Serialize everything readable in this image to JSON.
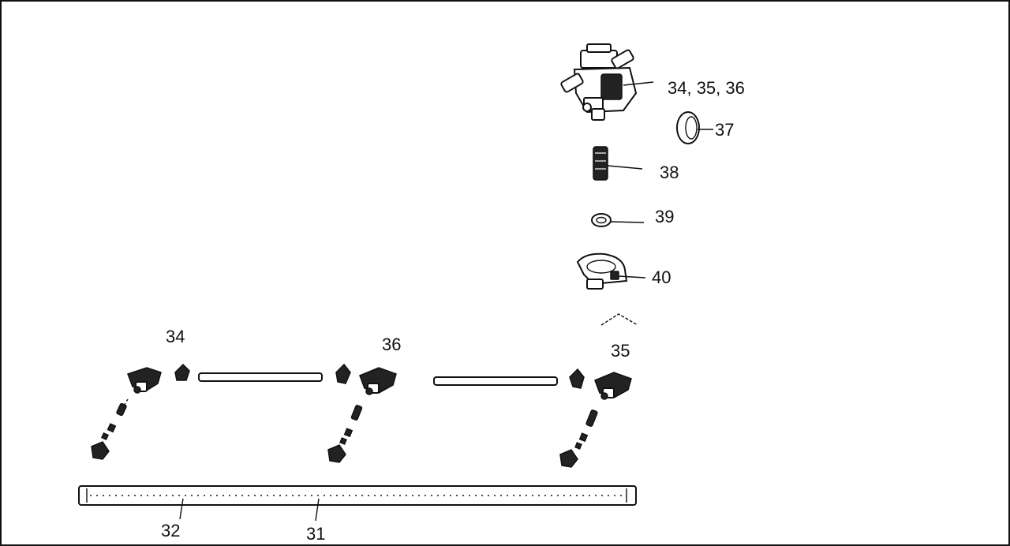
{
  "diagram": {
    "callouts": [
      {
        "id": "c-34-35-36",
        "text": "34, 35, 36"
      },
      {
        "id": "c-37",
        "text": "37"
      },
      {
        "id": "c-38",
        "text": "38"
      },
      {
        "id": "c-39",
        "text": "39"
      },
      {
        "id": "c-40",
        "text": "40"
      },
      {
        "id": "c-34",
        "text": "34"
      },
      {
        "id": "c-36",
        "text": "36"
      },
      {
        "id": "c-35",
        "text": "35"
      },
      {
        "id": "c-32",
        "text": "32"
      },
      {
        "id": "c-31",
        "text": "31"
      }
    ]
  }
}
